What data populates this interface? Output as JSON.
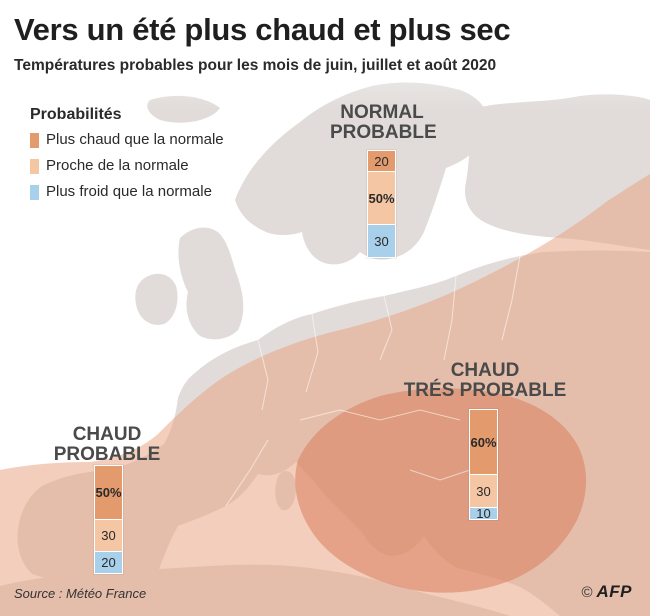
{
  "title": "Vers un été plus chaud et plus sec",
  "subtitle": "Températures probables pour les mois de juin, juillet et août 2020",
  "legend": {
    "title": "Probabilités",
    "items": [
      {
        "label": "Plus chaud que la normale",
        "color": "#e39a6c"
      },
      {
        "label": "Proche de la normale",
        "color": "#f4c6a3"
      },
      {
        "label": "Plus froid que la normale",
        "color": "#a8d0ea"
      }
    ]
  },
  "colors": {
    "land": "#e1dcda",
    "sea": "#ffffff",
    "warm_zone": "#e9a585",
    "very_warm_zone": "#d97d5c",
    "warm": "#e39a6c",
    "normal": "#f4c6a3",
    "cold": "#a8d0ea"
  },
  "regions": [
    {
      "id": "north",
      "label_line1": "NORMAL",
      "label_line2": "PROBABLE",
      "values": {
        "warm": 20,
        "normal": 50,
        "cold": 30
      },
      "labels": {
        "warm": "20",
        "normal": "50%",
        "cold": "30"
      }
    },
    {
      "id": "southwest",
      "label_line1": "CHAUD",
      "label_line2": "PROBABLE",
      "values": {
        "warm": 50,
        "normal": 30,
        "cold": 20
      },
      "labels": {
        "warm": "50%",
        "normal": "30",
        "cold": "20"
      }
    },
    {
      "id": "southeast",
      "label_line1": "CHAUD",
      "label_line2": "TRÉS PROBABLE",
      "values": {
        "warm": 60,
        "normal": 30,
        "cold": 10
      },
      "labels": {
        "warm": "60%",
        "normal": "30",
        "cold": "10"
      }
    }
  ],
  "source": "Source : Météo France",
  "credit": {
    "symbol": "©",
    "logo": "AFP"
  }
}
